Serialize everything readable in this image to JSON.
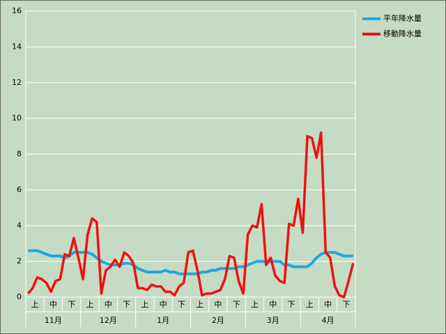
{
  "chart_data": {
    "type": "line",
    "categories": [
      null,
      "上",
      null,
      null,
      null,
      "中",
      null,
      null,
      null,
      "下",
      null,
      null,
      null,
      "上",
      null,
      null,
      null,
      "中",
      null,
      null,
      null,
      "下",
      null,
      null,
      null,
      "上",
      null,
      null,
      null,
      "中",
      null,
      null,
      null,
      "下",
      null,
      null,
      null,
      "上",
      null,
      null,
      null,
      "中",
      null,
      null,
      null,
      "下",
      null,
      null,
      null,
      "上",
      null,
      null,
      null,
      "中",
      null,
      null,
      null,
      "下",
      null,
      null,
      null,
      "上",
      null,
      null,
      null,
      "中",
      null,
      null,
      null,
      "下",
      null,
      null
    ],
    "months": [
      "11月",
      "12月",
      "1月",
      "2月",
      "3月",
      "4月"
    ],
    "series": [
      {
        "name": "平年降水量",
        "color": "#1ea7e1",
        "values": [
          2.6,
          2.6,
          2.6,
          2.5,
          2.4,
          2.3,
          2.3,
          2.3,
          2.2,
          2.3,
          2.5,
          2.5,
          2.5,
          2.5,
          2.4,
          2.2,
          2.0,
          1.9,
          1.8,
          1.8,
          1.8,
          1.9,
          1.9,
          1.8,
          1.6,
          1.5,
          1.4,
          1.4,
          1.4,
          1.4,
          1.5,
          1.4,
          1.4,
          1.3,
          1.3,
          1.3,
          1.3,
          1.3,
          1.4,
          1.4,
          1.5,
          1.5,
          1.6,
          1.6,
          1.6,
          1.6,
          1.7,
          1.7,
          1.8,
          1.9,
          2.0,
          2.0,
          2.0,
          2.0,
          2.0,
          2.0,
          1.8,
          1.8,
          1.7,
          1.7,
          1.7,
          1.7,
          1.9,
          2.2,
          2.4,
          2.5,
          2.5,
          2.5,
          2.4,
          2.3,
          2.3,
          2.3
        ]
      },
      {
        "name": "移動降水量",
        "color": "#ee1111",
        "values": [
          0.2,
          0.5,
          1.1,
          1.0,
          0.8,
          0.3,
          0.9,
          1.0,
          2.4,
          2.3,
          3.3,
          2.2,
          1.0,
          3.5,
          4.4,
          4.2,
          0.2,
          1.5,
          1.7,
          2.1,
          1.7,
          2.5,
          2.3,
          1.9,
          0.5,
          0.5,
          0.4,
          0.7,
          0.6,
          0.6,
          0.3,
          0.3,
          0.1,
          0.6,
          0.8,
          2.5,
          2.6,
          1.5,
          0.1,
          0.2,
          0.2,
          0.3,
          0.4,
          1.0,
          2.3,
          2.2,
          0.9,
          0.2,
          3.5,
          4.0,
          3.9,
          5.2,
          1.8,
          2.2,
          1.2,
          0.9,
          0.8,
          4.1,
          4.0,
          5.5,
          3.6,
          9.0,
          8.9,
          7.8,
          9.2,
          2.5,
          2.2,
          0.6,
          0.1,
          0.0,
          0.9,
          1.9
        ]
      }
    ],
    "ylim": [
      0,
      16
    ],
    "yticks": [
      0,
      2,
      4,
      6,
      8,
      10,
      12,
      14,
      16
    ],
    "grid": true,
    "legend": "right"
  }
}
